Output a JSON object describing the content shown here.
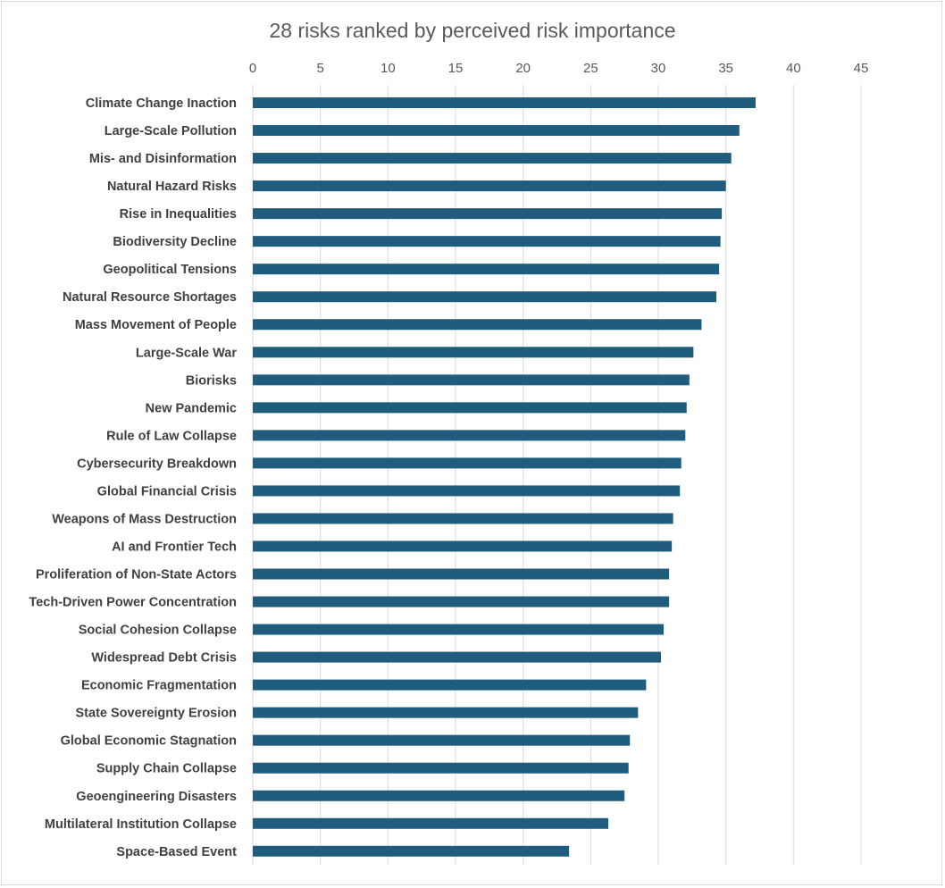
{
  "chart_data": {
    "type": "bar",
    "orientation": "horizontal",
    "title": "28 risks ranked by perceived risk importance",
    "xlabel": "",
    "ylabel": "",
    "xlim": [
      0,
      45
    ],
    "xticks": [
      "0",
      "5",
      "10",
      "15",
      "20",
      "25",
      "30",
      "35",
      "40",
      "45"
    ],
    "x_axis_position": "top",
    "grid": "vertical",
    "legend": "none",
    "bar_color": "#1f5c7e",
    "gridline_color": "#d9d9d9",
    "categories": [
      "Climate Change Inaction",
      "Large-Scale Pollution",
      "Mis- and Disinformation",
      "Natural Hazard Risks",
      "Rise in Inequalities",
      "Biodiversity Decline",
      "Geopolitical Tensions",
      "Natural Resource Shortages",
      "Mass Movement of People",
      "Large-Scale War",
      "Biorisks",
      "New Pandemic",
      "Rule of Law Collapse",
      "Cybersecurity Breakdown",
      "Global Financial Crisis",
      "Weapons of Mass Destruction",
      "AI and Frontier Tech",
      "Proliferation of Non-State Actors",
      "Tech-Driven Power Concentration",
      "Social Cohesion Collapse",
      "Widespread Debt Crisis",
      "Economic Fragmentation",
      "State Sovereignty Erosion",
      "Global Economic Stagnation",
      "Supply Chain Collapse",
      "Geoengineering Disasters",
      "Multilateral Institution Collapse",
      "Space-Based Event"
    ],
    "values": [
      37.2,
      36.0,
      35.4,
      35.0,
      34.7,
      34.6,
      34.5,
      34.3,
      33.2,
      32.6,
      32.3,
      32.1,
      32.0,
      31.7,
      31.6,
      31.1,
      31.0,
      30.8,
      30.8,
      30.4,
      30.2,
      29.1,
      28.5,
      27.9,
      27.8,
      27.5,
      26.3,
      23.4
    ]
  }
}
